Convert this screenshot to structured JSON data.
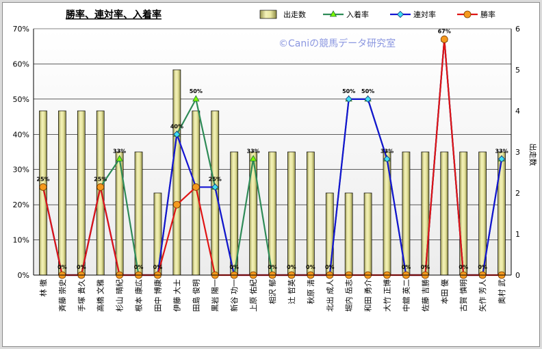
{
  "chart_data": {
    "type": "bar+line",
    "title": "勝率、連対率、入着率",
    "watermark": "©Caniの競馬データ研究室",
    "categories": [
      "林 徹",
      "斉藤 崇史",
      "手塚 貴久",
      "高橋 文雅",
      "杉山 晴紀",
      "根本 康広",
      "田中 博康",
      "伊藤 大士",
      "田島 俊明",
      "黒岩 陽一",
      "新谷 功一",
      "上原 佑紀",
      "相沢 郁",
      "辻 哲英",
      "秋原 清",
      "北出 成人",
      "堀内 岳志",
      "和田 勇介",
      "大竹 正博",
      "中舘 英二",
      "佐藤 吉勝",
      "本田 優",
      "古賀 慎明",
      "矢作 芳人",
      "奥村 武"
    ],
    "ylim_left": [
      0,
      70
    ],
    "ylim_right": [
      0,
      6
    ],
    "left_ticks": [
      "0%",
      "10%",
      "20%",
      "30%",
      "40%",
      "50%",
      "60%",
      "70%"
    ],
    "right_ticks": [
      "0",
      "1",
      "2",
      "3",
      "4",
      "5",
      "6"
    ],
    "right_axis_label": "出走数",
    "series": [
      {
        "name": "出走数",
        "kind": "bar",
        "axis": "right",
        "color": "#e8e6a0",
        "values": [
          4,
          4,
          4,
          4,
          3,
          3,
          2,
          5,
          4,
          4,
          3,
          3,
          3,
          3,
          3,
          2,
          2,
          2,
          3,
          3,
          3,
          3,
          3,
          3,
          3
        ]
      },
      {
        "name": "入着率",
        "kind": "line",
        "axis": "left",
        "color": "#2e8b57",
        "values": [
          25,
          0,
          0,
          25,
          33,
          0,
          0,
          40,
          50,
          25,
          0,
          33,
          0,
          0,
          0,
          0,
          50,
          50,
          33,
          0,
          0,
          67,
          0,
          0,
          33
        ]
      },
      {
        "name": "連対率",
        "kind": "line",
        "axis": "left",
        "color": "#1414d2",
        "values": [
          25,
          0,
          0,
          25,
          0,
          0,
          0,
          40,
          25,
          25,
          0,
          0,
          0,
          0,
          0,
          0,
          50,
          50,
          33,
          0,
          0,
          67,
          0,
          0,
          33
        ]
      },
      {
        "name": "勝率",
        "kind": "line",
        "axis": "left",
        "color": "#e01414",
        "values": [
          25,
          0,
          0,
          25,
          0,
          0,
          0,
          20,
          25,
          0,
          0,
          0,
          0,
          0,
          0,
          0,
          0,
          0,
          0,
          0,
          0,
          67,
          0,
          0,
          0
        ]
      }
    ],
    "data_labels": [
      "25%",
      "0%",
      "0%",
      "25%",
      "33%",
      "0%",
      "0%",
      "40%",
      "50%",
      "25%",
      "0%",
      "33%",
      "0%",
      "0%",
      "0%",
      "0%",
      "50%",
      "50%",
      "33%",
      "0%",
      "0%",
      "67%",
      "0%",
      "0%",
      "33%"
    ],
    "legend": {
      "position": "top",
      "items": [
        "出走数",
        "入着率",
        "連対率",
        "勝率"
      ]
    },
    "grid": true
  }
}
